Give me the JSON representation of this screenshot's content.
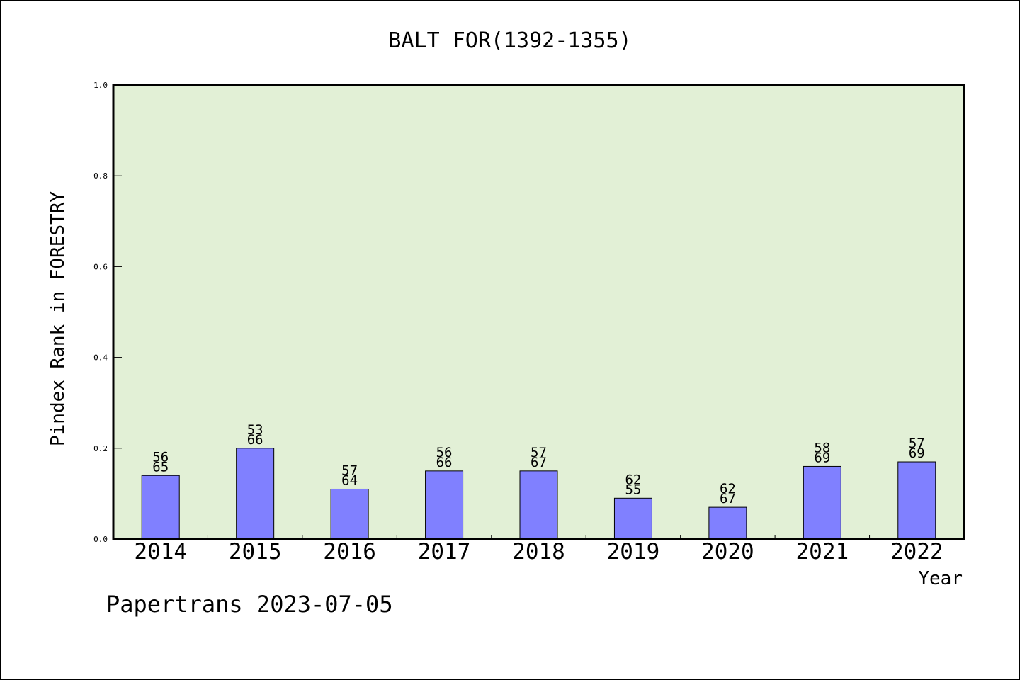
{
  "chart_data": {
    "type": "bar",
    "title": "BALT FOR(1392-1355)",
    "xlabel": "Year",
    "ylabel": "Pindex Rank in FORESTRY",
    "ylim": [
      0,
      1.0
    ],
    "yticks": [
      "0.0",
      "0.2",
      "0.4",
      "0.6",
      "0.8",
      "1.0"
    ],
    "categories": [
      "2014",
      "2015",
      "2016",
      "2017",
      "2018",
      "2019",
      "2020",
      "2021",
      "2022"
    ],
    "values": [
      0.14,
      0.2,
      0.11,
      0.15,
      0.15,
      0.09,
      0.07,
      0.16,
      0.17
    ],
    "labels_top": [
      "56",
      "53",
      "57",
      "56",
      "57",
      "62",
      "62",
      "58",
      "57"
    ],
    "labels_bottom": [
      "65",
      "66",
      "64",
      "66",
      "67",
      "55",
      "67",
      "69",
      "69"
    ],
    "grid": false,
    "bar_color": "#8080ff",
    "plot_background": "#e2f0d6"
  },
  "footer": "Papertrans 2023-07-05"
}
